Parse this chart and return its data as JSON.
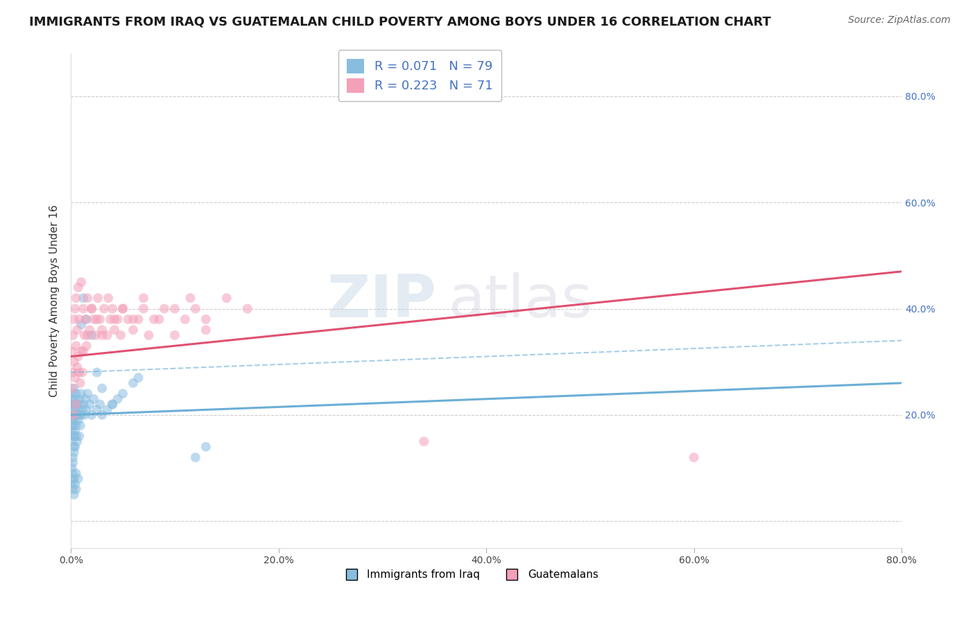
{
  "title": "IMMIGRANTS FROM IRAQ VS GUATEMALAN CHILD POVERTY AMONG BOYS UNDER 16 CORRELATION CHART",
  "source": "Source: ZipAtlas.com",
  "ylabel": "Child Poverty Among Boys Under 16",
  "r_iraq": 0.071,
  "n_iraq": 79,
  "r_guatemalan": 0.223,
  "n_guatemalan": 71,
  "color_iraq": "#89bde0",
  "color_guatemalan": "#f4a0b8",
  "line_color_iraq": "#6baed6",
  "line_color_guat": "#e05070",
  "watermark_zip": "ZIP",
  "watermark_atlas": "atlas",
  "bg_color": "#ffffff",
  "xlim": [
    0.0,
    0.8
  ],
  "ylim": [
    -0.05,
    0.88
  ],
  "xtick_vals": [
    0.0,
    0.2,
    0.4,
    0.6,
    0.8
  ],
  "ytick_vals": [
    0.0,
    0.2,
    0.4,
    0.6,
    0.8
  ],
  "iraq_x": [
    0.001,
    0.001,
    0.001,
    0.001,
    0.001,
    0.001,
    0.002,
    0.002,
    0.002,
    0.002,
    0.002,
    0.002,
    0.003,
    0.003,
    0.003,
    0.003,
    0.003,
    0.004,
    0.004,
    0.004,
    0.004,
    0.005,
    0.005,
    0.005,
    0.005,
    0.006,
    0.006,
    0.007,
    0.007,
    0.008,
    0.008,
    0.009,
    0.009,
    0.01,
    0.01,
    0.011,
    0.012,
    0.013,
    0.014,
    0.015,
    0.016,
    0.018,
    0.02,
    0.022,
    0.025,
    0.028,
    0.03,
    0.035,
    0.04,
    0.045,
    0.001,
    0.001,
    0.001,
    0.002,
    0.002,
    0.002,
    0.002,
    0.003,
    0.003,
    0.003,
    0.004,
    0.004,
    0.005,
    0.005,
    0.006,
    0.007,
    0.008,
    0.01,
    0.012,
    0.015,
    0.02,
    0.025,
    0.03,
    0.04,
    0.05,
    0.06,
    0.065,
    0.12,
    0.13
  ],
  "iraq_y": [
    0.18,
    0.2,
    0.22,
    0.17,
    0.15,
    0.23,
    0.19,
    0.21,
    0.16,
    0.24,
    0.18,
    0.22,
    0.2,
    0.16,
    0.25,
    0.14,
    0.19,
    0.21,
    0.17,
    0.23,
    0.2,
    0.22,
    0.18,
    0.24,
    0.16,
    0.2,
    0.22,
    0.19,
    0.21,
    0.2,
    0.23,
    0.18,
    0.22,
    0.2,
    0.24,
    0.21,
    0.22,
    0.2,
    0.23,
    0.21,
    0.24,
    0.22,
    0.2,
    0.23,
    0.21,
    0.22,
    0.2,
    0.21,
    0.22,
    0.23,
    0.1,
    0.07,
    0.08,
    0.06,
    0.09,
    0.11,
    0.12,
    0.08,
    0.05,
    0.13,
    0.07,
    0.14,
    0.09,
    0.06,
    0.15,
    0.08,
    0.16,
    0.37,
    0.42,
    0.38,
    0.35,
    0.28,
    0.25,
    0.22,
    0.24,
    0.26,
    0.27,
    0.12,
    0.14
  ],
  "guat_x": [
    0.001,
    0.001,
    0.002,
    0.002,
    0.003,
    0.003,
    0.004,
    0.004,
    0.005,
    0.005,
    0.006,
    0.006,
    0.007,
    0.007,
    0.008,
    0.009,
    0.01,
    0.01,
    0.011,
    0.012,
    0.013,
    0.014,
    0.015,
    0.016,
    0.018,
    0.02,
    0.022,
    0.024,
    0.026,
    0.028,
    0.03,
    0.032,
    0.035,
    0.038,
    0.04,
    0.042,
    0.045,
    0.048,
    0.05,
    0.055,
    0.06,
    0.065,
    0.07,
    0.075,
    0.08,
    0.09,
    0.1,
    0.11,
    0.12,
    0.13,
    0.003,
    0.005,
    0.008,
    0.012,
    0.016,
    0.02,
    0.025,
    0.03,
    0.036,
    0.042,
    0.05,
    0.06,
    0.07,
    0.085,
    0.1,
    0.115,
    0.13,
    0.15,
    0.17,
    0.34,
    0.6
  ],
  "guat_y": [
    0.25,
    0.32,
    0.28,
    0.35,
    0.3,
    0.38,
    0.27,
    0.4,
    0.33,
    0.42,
    0.29,
    0.36,
    0.31,
    0.44,
    0.38,
    0.26,
    0.32,
    0.45,
    0.28,
    0.4,
    0.35,
    0.38,
    0.33,
    0.42,
    0.36,
    0.4,
    0.38,
    0.35,
    0.42,
    0.38,
    0.36,
    0.4,
    0.35,
    0.38,
    0.4,
    0.36,
    0.38,
    0.35,
    0.4,
    0.38,
    0.36,
    0.38,
    0.4,
    0.35,
    0.38,
    0.4,
    0.35,
    0.38,
    0.4,
    0.36,
    0.2,
    0.22,
    0.28,
    0.32,
    0.35,
    0.4,
    0.38,
    0.35,
    0.42,
    0.38,
    0.4,
    0.38,
    0.42,
    0.38,
    0.4,
    0.42,
    0.38,
    0.42,
    0.4,
    0.15,
    0.12
  ],
  "legend_text_color": "#4472c4",
  "title_fontsize": 13,
  "axis_label_fontsize": 11,
  "tick_fontsize": 10,
  "legend_fontsize": 13,
  "source_fontsize": 10,
  "scatter_size": 100,
  "scatter_alpha": 0.55
}
